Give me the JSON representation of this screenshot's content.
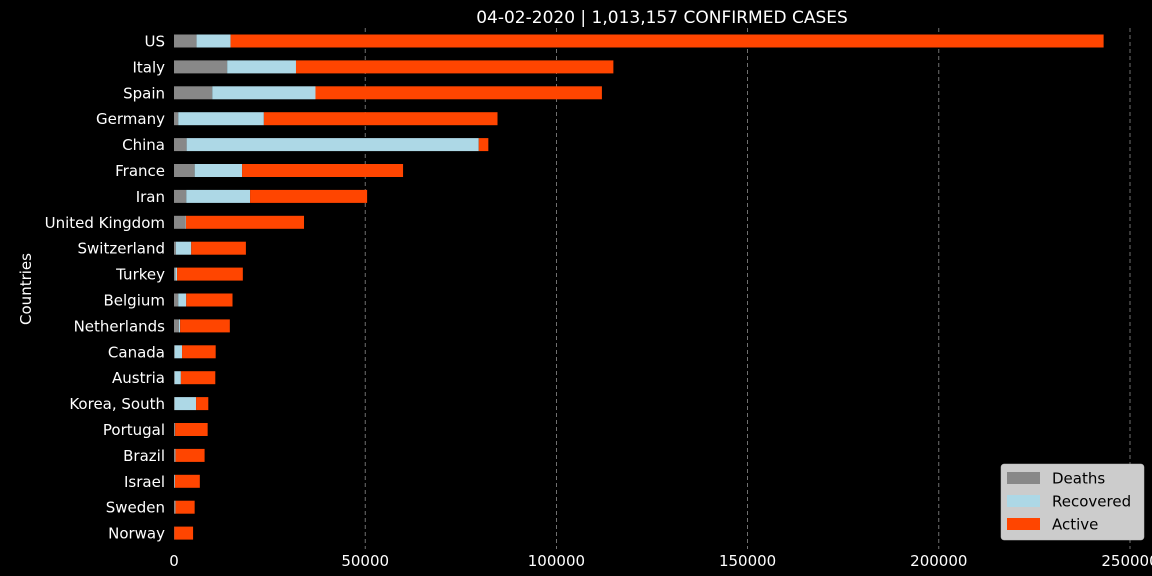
{
  "chart_data": {
    "type": "bar",
    "orientation": "horizontal",
    "stacked": true,
    "title": "04-02-2020 | 1,013,157 CONFIRMED CASES",
    "xlabel": "",
    "ylabel": "Countries",
    "xlim": [
      0,
      250000
    ],
    "xticks": [
      0,
      50000,
      100000,
      150000,
      200000,
      250000
    ],
    "xtick_labels": [
      "0",
      "50000",
      "100000",
      "150000",
      "200000",
      "250000"
    ],
    "grid": "x-dashed",
    "legend_position": "bottom-right",
    "categories": [
      "US",
      "Italy",
      "Spain",
      "Germany",
      "China",
      "France",
      "Iran",
      "United Kingdom",
      "Switzerland",
      "Turkey",
      "Belgium",
      "Netherlands",
      "Canada",
      "Austria",
      "Korea, South",
      "Portugal",
      "Brazil",
      "Israel",
      "Sweden",
      "Norway"
    ],
    "series": [
      {
        "name": "Deaths",
        "color": "#888888",
        "values": [
          5900,
          13900,
          10000,
          1100,
          3300,
          5400,
          3200,
          2900,
          500,
          400,
          1100,
          1300,
          200,
          200,
          170,
          200,
          300,
          50,
          300,
          60
        ]
      },
      {
        "name": "Recovered",
        "color": "#add8e6",
        "values": [
          8900,
          18000,
          27000,
          22400,
          76400,
          12400,
          16700,
          200,
          4000,
          400,
          2100,
          300,
          1900,
          1600,
          5600,
          100,
          100,
          200,
          100,
          30
        ]
      },
      {
        "name": "Active",
        "color": "#ff4500",
        "values": [
          228300,
          83000,
          74900,
          61100,
          2500,
          42100,
          30600,
          30900,
          14300,
          17200,
          12100,
          13000,
          8800,
          9000,
          3200,
          8500,
          7600,
          6500,
          5000,
          4900
        ]
      }
    ]
  }
}
